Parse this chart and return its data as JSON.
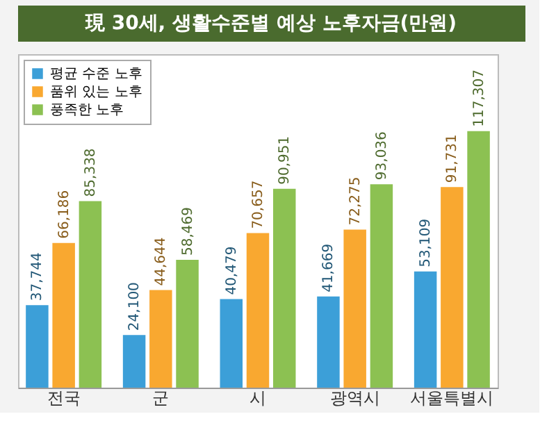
{
  "chart_data": {
    "type": "bar",
    "title": "現 30세, 생활수준별 예상 노후자금(만원)",
    "categories": [
      "전국",
      "군",
      "시",
      "광역시",
      "서울특별시"
    ],
    "series": [
      {
        "name": "평균 수준 노후",
        "color": "#3c9fd8",
        "values": [
          37744,
          24100,
          40479,
          41669,
          53109
        ],
        "value_labels": [
          "37,744",
          "24,100",
          "40,479",
          "41,669",
          "53,109"
        ]
      },
      {
        "name": "품위 있는 노후",
        "color": "#f9a830",
        "values": [
          66186,
          44644,
          70657,
          72275,
          91731
        ],
        "value_labels": [
          "66,186",
          "44,644",
          "70,657",
          "72,275",
          "91,731"
        ]
      },
      {
        "name": "풍족한 노후",
        "color": "#8cc152",
        "values": [
          85338,
          58469,
          90951,
          93036,
          117307
        ],
        "value_labels": [
          "85,338",
          "58,469",
          "90,951",
          "93,036",
          "117,307"
        ]
      }
    ],
    "legend": "top left",
    "grid": false,
    "tick_labels": "x"
  }
}
